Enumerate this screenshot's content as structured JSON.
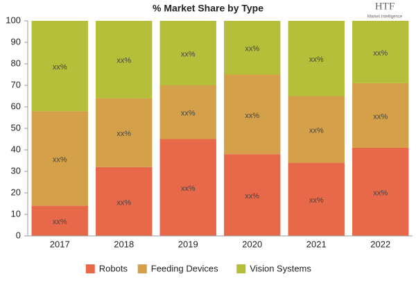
{
  "logo": {
    "text": "HTF",
    "subtitle": "Market Intelligence"
  },
  "chart_data": {
    "type": "stacked_bar",
    "title": "% Market Share by Type",
    "categories": [
      "2017",
      "2018",
      "2019",
      "2020",
      "2021",
      "2022"
    ],
    "series": [
      {
        "name": "Robots",
        "color": "#e8694a",
        "values": [
          14,
          32,
          45,
          38,
          34,
          41
        ],
        "value_labels": [
          "xx%",
          "xx%",
          "xx%",
          "xx%",
          "xx%",
          "xx%"
        ]
      },
      {
        "name": "Feeding Devices",
        "color": "#d4a04a",
        "values": [
          44,
          32,
          25,
          37,
          31,
          30
        ],
        "value_labels": [
          "xx%",
          "xx%",
          "xx%",
          "xx%",
          "xx%",
          "xx%"
        ]
      },
      {
        "name": "Vision Systems",
        "color": "#b5bf3a",
        "values": [
          42,
          36,
          30,
          25,
          35,
          29
        ],
        "value_labels": [
          "xx%",
          "xx%",
          "xx%",
          "xx%",
          "xx%",
          "xx%"
        ]
      }
    ],
    "ylim": [
      0,
      100
    ],
    "yticks": [
      0,
      10,
      20,
      30,
      40,
      50,
      60,
      70,
      80,
      90,
      100
    ],
    "legend": "bottom"
  }
}
